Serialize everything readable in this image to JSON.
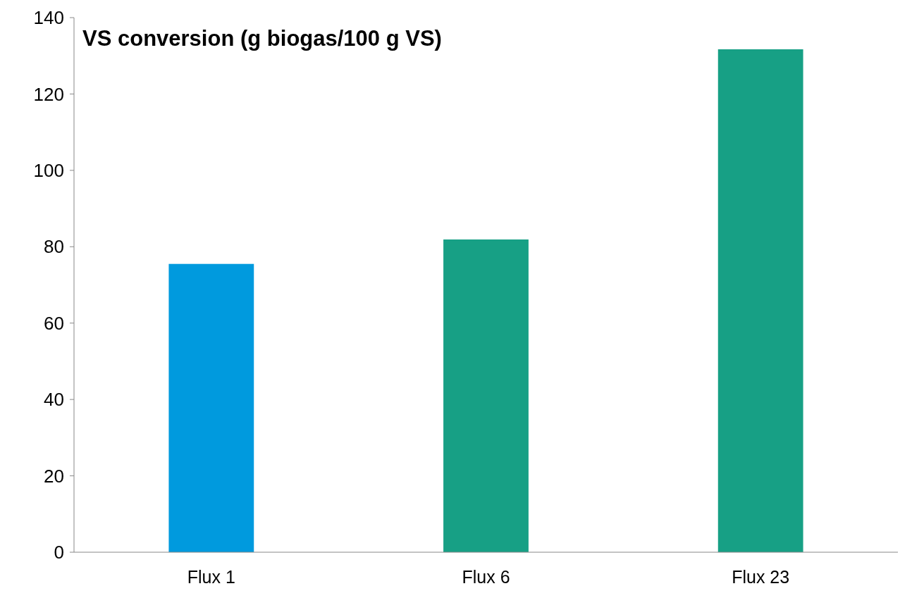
{
  "chart_data": {
    "type": "bar",
    "title": "VS conversion (g biogas/100 g VS)",
    "categories": [
      "Flux 1",
      "Flux 6",
      "Flux 23"
    ],
    "values": [
      75.5,
      81.9,
      131.7
    ],
    "colors": [
      "#009ade",
      "#17a085",
      "#17a085"
    ],
    "ylim": [
      0,
      140
    ],
    "yticks": [
      0,
      20,
      40,
      60,
      80,
      100,
      120,
      140
    ],
    "grid": false
  }
}
